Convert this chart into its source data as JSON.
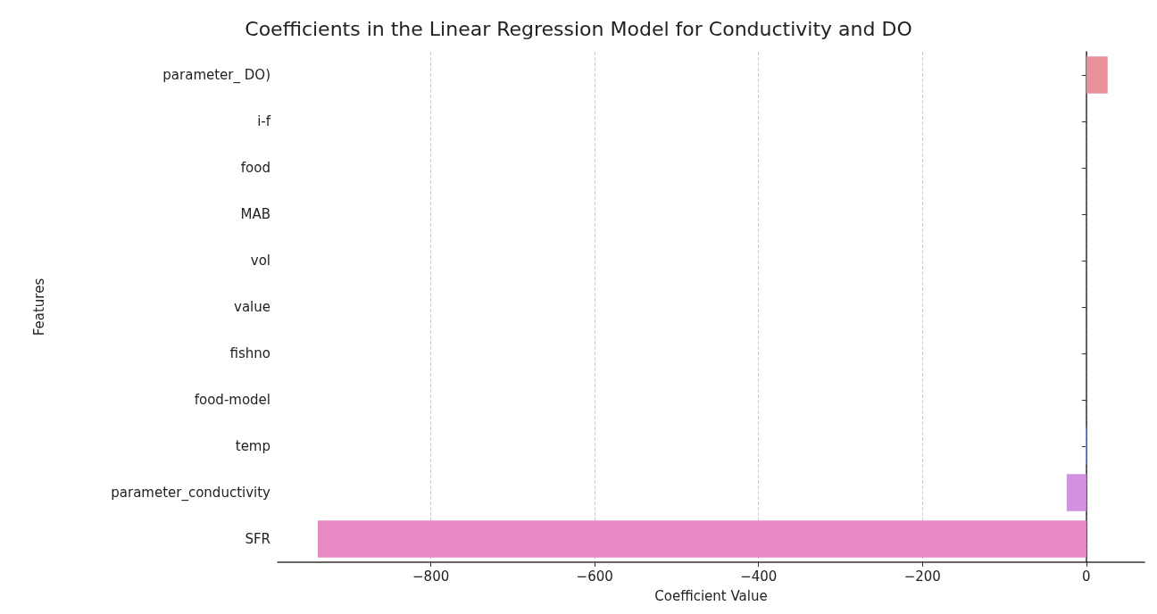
{
  "chart_data": {
    "type": "bar",
    "orientation": "horizontal",
    "title": "Coefficients in the Linear Regression Model for Conductivity and DO",
    "xlabel": "Coefficient Value",
    "ylabel": "Features",
    "categories": [
      "parameter_ DO)",
      "i-f",
      "food",
      "MAB",
      "vol",
      "value",
      "fishno",
      "food-model",
      "temp",
      "parameter_conductivity",
      "SFR"
    ],
    "values": [
      26,
      0,
      0,
      0,
      0,
      0,
      0,
      0,
      -1,
      -24,
      -938
    ],
    "colors": [
      "#e8919b",
      "#e0a07a",
      "#c8b46a",
      "#9cbc6a",
      "#6cc08c",
      "#6cc0b4",
      "#6cb8d4",
      "#7ca8e0",
      "#8a9ae0",
      "#d48fe3",
      "#e88bc4"
    ],
    "xlim": [
      -987,
      71
    ],
    "xticks": [
      -800,
      -600,
      -400,
      -200,
      0
    ],
    "grid": "x"
  }
}
